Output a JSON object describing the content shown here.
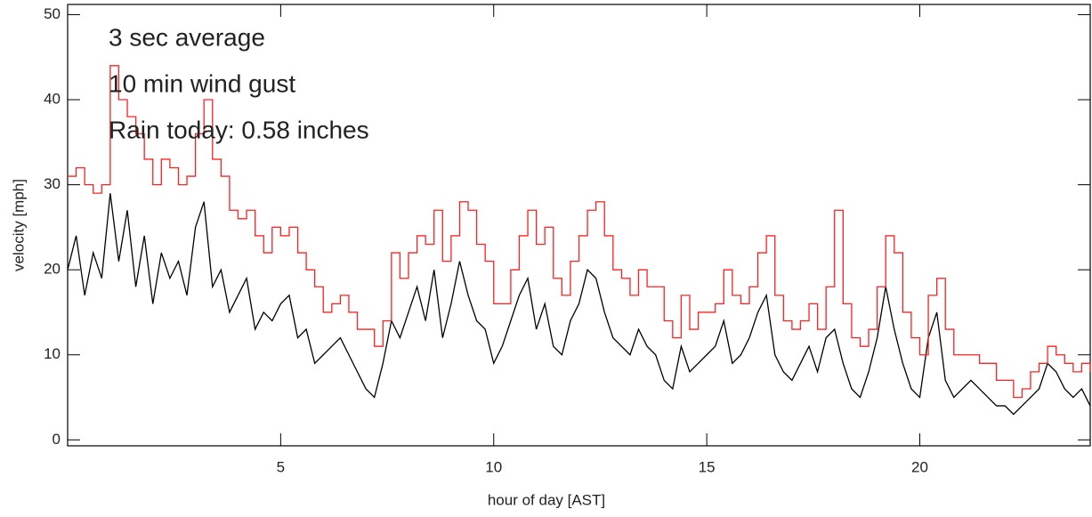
{
  "chart_data": {
    "type": "line",
    "xlabel": "hour of day [AST]",
    "ylabel": "velocity [mph]",
    "xlim": [
      0,
      24
    ],
    "xticks": [
      5,
      10,
      15,
      20
    ],
    "ylim": [
      -0.7,
      51.2
    ],
    "yticks": [
      0,
      10,
      20,
      30,
      40,
      50
    ],
    "annotations": [
      {
        "text": "3 sec average",
        "color": "#333333"
      },
      {
        "text": "10 min wind gust",
        "color": "#ff2020"
      },
      {
        "text": "Rain today: 0.58 inches",
        "color": "#3030ee"
      }
    ],
    "x": [
      0,
      0.2,
      0.4,
      0.6,
      0.8,
      1,
      1.2,
      1.4,
      1.6,
      1.8,
      2,
      2.2,
      2.4,
      2.6,
      2.8,
      3,
      3.2,
      3.4,
      3.6,
      3.8,
      4,
      4.2,
      4.4,
      4.6,
      4.8,
      5,
      5.2,
      5.4,
      5.6,
      5.8,
      6,
      6.2,
      6.4,
      6.6,
      6.8,
      7,
      7.2,
      7.4,
      7.6,
      7.8,
      8,
      8.2,
      8.4,
      8.6,
      8.8,
      9,
      9.2,
      9.4,
      9.6,
      9.8,
      10,
      10.2,
      10.4,
      10.6,
      10.8,
      11,
      11.2,
      11.4,
      11.6,
      11.8,
      12,
      12.2,
      12.4,
      12.6,
      12.8,
      13,
      13.2,
      13.4,
      13.6,
      13.8,
      14,
      14.2,
      14.4,
      14.6,
      14.8,
      15,
      15.2,
      15.4,
      15.6,
      15.8,
      16,
      16.2,
      16.4,
      16.6,
      16.8,
      17,
      17.2,
      17.4,
      17.6,
      17.8,
      18,
      18.2,
      18.4,
      18.6,
      18.8,
      19,
      19.2,
      19.4,
      19.6,
      19.8,
      20,
      20.2,
      20.4,
      20.6,
      20.8,
      21,
      21.2,
      21.4,
      21.6,
      21.8,
      22,
      22.2,
      22.4,
      22.6,
      22.8,
      23,
      23.2,
      23.4,
      23.6,
      23.8,
      24
    ],
    "series": [
      {
        "color": "#000000",
        "drawstyle": "default",
        "values": [
          20,
          24,
          17,
          22,
          19,
          29,
          21,
          27,
          18,
          24,
          16,
          22,
          19,
          21,
          17,
          25,
          28,
          18,
          20,
          15,
          17,
          19,
          13,
          15,
          14,
          16,
          17,
          12,
          13,
          9,
          10,
          11,
          12,
          10,
          8,
          6,
          5,
          9,
          14,
          12,
          15,
          18,
          14,
          20,
          12,
          16,
          21,
          17,
          14,
          13,
          9,
          11,
          14,
          17,
          19,
          13,
          16,
          11,
          10,
          14,
          16,
          20,
          19,
          15,
          12,
          11,
          10,
          13,
          11,
          10,
          7,
          6,
          11,
          8,
          9,
          10,
          11,
          14,
          9,
          10,
          12,
          15,
          17,
          10,
          8,
          7,
          9,
          11,
          8,
          12,
          13,
          9,
          6,
          5,
          8,
          12,
          18,
          13,
          9,
          6,
          5,
          12,
          15,
          7,
          5,
          6,
          7,
          6,
          5,
          4,
          4,
          3,
          4,
          5,
          6,
          9,
          8,
          6,
          5,
          6,
          4
        ]
      },
      {
        "color": "#ff2020",
        "drawstyle": "steps",
        "values": [
          31,
          32,
          30,
          29,
          30,
          44,
          40,
          38,
          36,
          33,
          30,
          33,
          32,
          30,
          31,
          36,
          40,
          33,
          31,
          27,
          26,
          27,
          24,
          22,
          25,
          24,
          25,
          22,
          20,
          18,
          15,
          16,
          17,
          15,
          13,
          13,
          11,
          14,
          22,
          19,
          22,
          24,
          23,
          27,
          21,
          24,
          28,
          27,
          23,
          21,
          16,
          16,
          20,
          24,
          27,
          23,
          25,
          19,
          17,
          21,
          24,
          27,
          28,
          24,
          20,
          19,
          17,
          20,
          18,
          18,
          14,
          12,
          17,
          13,
          15,
          15,
          16,
          20,
          17,
          16,
          18,
          22,
          24,
          17,
          14,
          13,
          14,
          16,
          13,
          18,
          27,
          16,
          12,
          11,
          13,
          18,
          24,
          22,
          15,
          12,
          10,
          17,
          19,
          13,
          10,
          10,
          10,
          9,
          9,
          7,
          7,
          5,
          6,
          8,
          9,
          11,
          10,
          9,
          8,
          9,
          8
        ]
      }
    ]
  }
}
